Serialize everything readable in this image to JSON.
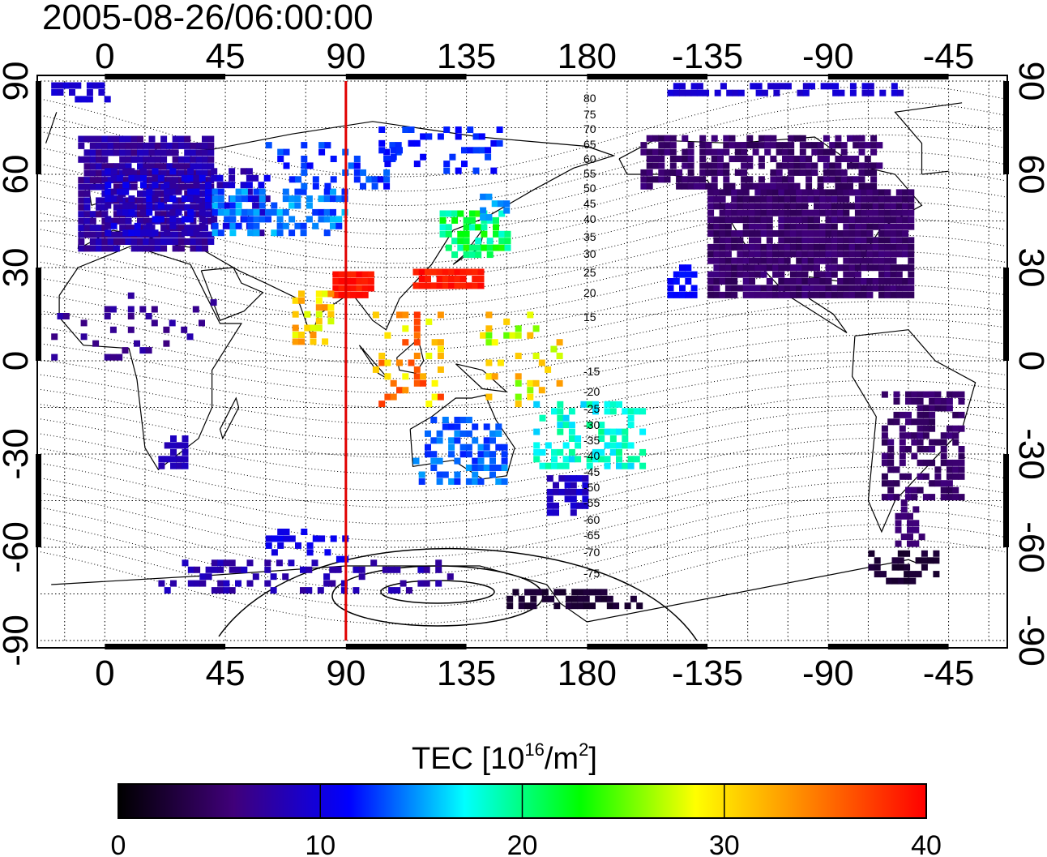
{
  "title": "2005-08-26/06:00:00",
  "axes": {
    "top_ticks": [
      "0",
      "45",
      "90",
      "135",
      "180",
      "-135",
      "-90",
      "-45"
    ],
    "bottom_ticks": [
      "0",
      "45",
      "90",
      "135",
      "180",
      "-135",
      "-90",
      "-45"
    ],
    "left_ticks": [
      "90",
      "60",
      "30",
      "0",
      "-30",
      "-60",
      "-90"
    ],
    "right_ticks": [
      "90",
      "60",
      "30",
      "0",
      "-30",
      "-60",
      "-90"
    ]
  },
  "map": {
    "projection": "equirectangular",
    "lon_range_east": [
      -24,
      336
    ],
    "lat_range": [
      -90,
      90
    ],
    "grid": "dotted",
    "grid_spacing_deg": 15,
    "marker_line_lon": 90,
    "marker_line_color": "#e00000",
    "contour_labels": [
      "80",
      "75",
      "70",
      "65",
      "60",
      "55",
      "50",
      "45",
      "40",
      "35",
      "30",
      "25",
      "20",
      "15",
      "-15",
      "-20",
      "-25",
      "-30",
      "-35",
      "-40",
      "-45",
      "-50",
      "-55",
      "-60",
      "-65",
      "-70",
      "-75"
    ]
  },
  "colorbar": {
    "title_main": "TEC  [10",
    "title_sup1": "16",
    "title_mid": "/m",
    "title_sup2": "2",
    "title_end": "]",
    "range": [
      0,
      40
    ],
    "ticks": [
      "0",
      "10",
      "20",
      "30",
      "40"
    ],
    "colormap": [
      "#000000",
      "#40007a",
      "#0000ff",
      "#00ffff",
      "#00ff00",
      "#ffff00",
      "#ff8000",
      "#ff0000"
    ]
  }
}
